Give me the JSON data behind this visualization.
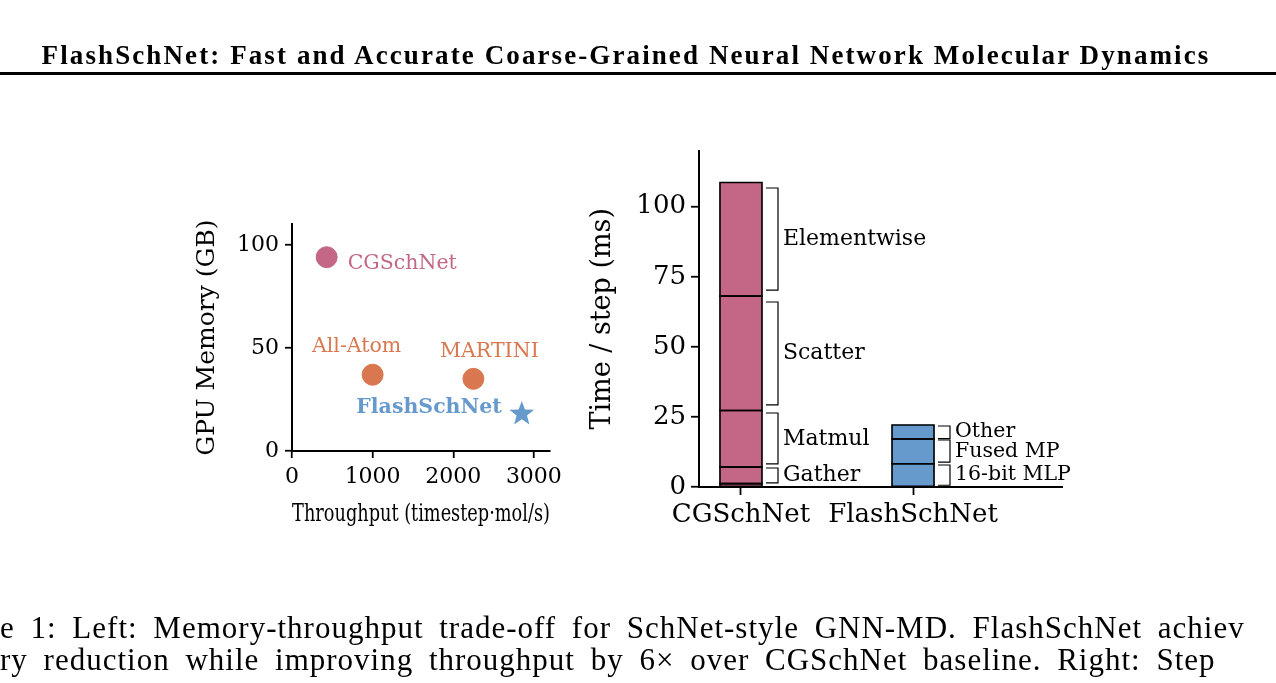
{
  "chart_data": [
    {
      "type": "scatter",
      "title": "FlashSchNet: Fast and Accurate Coarse-Grained Neural Network Molecular Dynamics",
      "xlabel": "Throughput (timestep·mol/s)",
      "ylabel": "GPU Memory (GB)",
      "xlim": [
        0,
        3200
      ],
      "ylim": [
        0,
        110
      ],
      "xticks": [
        0,
        1000,
        2000,
        3000
      ],
      "yticks": [
        0,
        50,
        100
      ],
      "series": [
        {
          "name": "CGSchNet",
          "color": "#c46786",
          "x": [
            430
          ],
          "values": [
            94
          ],
          "marker": "circle"
        },
        {
          "name": "All-Atom",
          "color": "#d97850",
          "x": [
            1000
          ],
          "values": [
            37
          ],
          "marker": "circle"
        },
        {
          "name": "MARTINI",
          "color": "#d97850",
          "x": [
            2250
          ],
          "values": [
            35
          ],
          "marker": "circle"
        },
        {
          "name": "FlashSchNet",
          "color": "#6699cc",
          "x": [
            2850
          ],
          "values": [
            18
          ],
          "marker": "star"
        }
      ],
      "annotations": [
        "e 1: Left: Memory-throughput trade-off for SchNet-style GNN-MD. FlashSchNet achiev",
        "ry reduction while improving throughput by 6× over CGSchNet baseline. Right: Step"
      ]
    },
    {
      "type": "bar",
      "stacked": true,
      "ylabel": "Time / step (ms)",
      "categories": [
        "CGSchNet",
        "FlashSchNet"
      ],
      "ylim": [
        0,
        120
      ],
      "yticks": [
        0,
        25,
        50,
        75,
        100
      ],
      "series": [
        {
          "color": "#c46786",
          "values": [
            1.2,
            null
          ]
        },
        {
          "name": "Gather",
          "color": "#c46786",
          "values": [
            5.9,
            null
          ]
        },
        {
          "name": "Matmul",
          "color": "#c46786",
          "values": [
            20.2,
            null
          ]
        },
        {
          "name": "Scatter",
          "color": "#c46786",
          "values": [
            40.8,
            null
          ]
        },
        {
          "name": "Elementwise",
          "color": "#c46786",
          "values": [
            40.5,
            null
          ]
        },
        {
          "name": "16-bit MLP",
          "color": "#6699cc",
          "values": [
            null,
            8.3
          ]
        },
        {
          "name": "Fused MP",
          "color": "#6699cc",
          "values": [
            null,
            8.8
          ]
        },
        {
          "name": "Other",
          "color": "#6699cc",
          "values": [
            null,
            5.0
          ]
        }
      ]
    }
  ]
}
